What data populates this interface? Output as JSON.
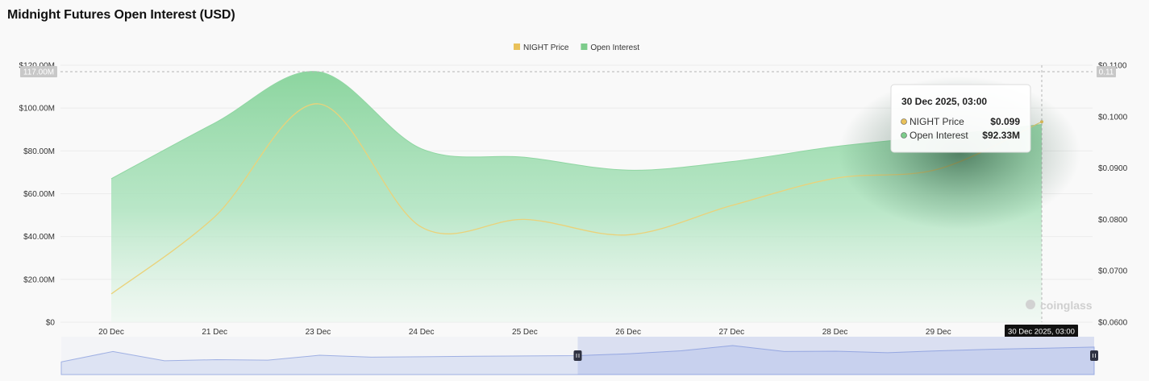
{
  "page": {
    "title": "Midnight Futures Open Interest (USD)"
  },
  "chart_data": {
    "type": "area",
    "legend": {
      "position": "top-center",
      "items": [
        {
          "name": "NIGHT Price",
          "color": "#e9c15a"
        },
        {
          "name": "Open Interest",
          "color": "#7dcc8b"
        }
      ]
    },
    "categories": [
      "20 Dec",
      "21 Dec",
      "23 Dec",
      "24 Dec",
      "25 Dec",
      "26 Dec",
      "27 Dec",
      "28 Dec",
      "29 Dec",
      "30 Dec 2025, 03:00"
    ],
    "x_tick_labels": [
      "20 Dec",
      "21 Dec",
      "23 Dec",
      "24 Dec",
      "25 Dec",
      "26 Dec",
      "27 Dec",
      "28 Dec",
      "29 Dec"
    ],
    "x_current_label": "30 Dec 2025, 03:00",
    "y_left": {
      "ylim": [
        0,
        120000000
      ],
      "tick_labels": [
        "$0",
        "$20.00M",
        "$40.00M",
        "$60.00M",
        "$80.00M",
        "$100.00M",
        "$120.00M"
      ],
      "ticks": [
        0,
        20000000,
        40000000,
        60000000,
        80000000,
        100000000,
        120000000
      ],
      "crosshair_label": "117.00M"
    },
    "y_right": {
      "ylim": [
        0.06,
        0.11
      ],
      "tick_labels": [
        "$0.0600",
        "$0.0700",
        "$0.0800",
        "$0.0900",
        "$0.1000",
        "$0.1100"
      ],
      "ticks": [
        0.06,
        0.07,
        0.08,
        0.09,
        0.1,
        0.11
      ],
      "crosshair_label": "0.11"
    },
    "series": [
      {
        "name": "Open Interest",
        "axis": "left",
        "color": "#7dcc8b",
        "points": [
          {
            "x": 0.0,
            "y": 67000000
          },
          {
            "x": 1.0,
            "y": 93000000
          },
          {
            "x": 2.0,
            "y": 117000000
          },
          {
            "x": 3.0,
            "y": 81000000
          },
          {
            "x": 4.0,
            "y": 77000000
          },
          {
            "x": 5.0,
            "y": 71000000
          },
          {
            "x": 6.0,
            "y": 75000000
          },
          {
            "x": 7.0,
            "y": 82000000
          },
          {
            "x": 8.0,
            "y": 87000000
          },
          {
            "x": 9.0,
            "y": 92330000
          }
        ]
      },
      {
        "name": "NIGHT Price",
        "axis": "right",
        "color": "#e9c15a",
        "points": [
          {
            "x": 0.0,
            "y": 0.0655
          },
          {
            "x": 1.0,
            "y": 0.0805
          },
          {
            "x": 2.0,
            "y": 0.1025
          },
          {
            "x": 3.0,
            "y": 0.0785
          },
          {
            "x": 4.0,
            "y": 0.08
          },
          {
            "x": 5.0,
            "y": 0.077
          },
          {
            "x": 6.0,
            "y": 0.0827
          },
          {
            "x": 7.0,
            "y": 0.088
          },
          {
            "x": 8.0,
            "y": 0.0898
          },
          {
            "x": 9.0,
            "y": 0.099
          }
        ]
      }
    ],
    "tooltip": {
      "title": "30 Dec 2025, 03:00",
      "rows": [
        {
          "label": "NIGHT Price",
          "value": "$0.099",
          "color": "#e9c15a"
        },
        {
          "label": "Open Interest",
          "value": "$92.33M",
          "color": "#7dcc8b"
        }
      ]
    },
    "navigator": {
      "overview": [
        0.2,
        0.9,
        0.28,
        0.35,
        0.32,
        0.65,
        0.52,
        0.55,
        0.58,
        0.6,
        0.62,
        0.75,
        0.95,
        1.3,
        0.9,
        0.92,
        0.82,
        0.95,
        1.05,
        1.12,
        1.2
      ],
      "selection_start": 0.5,
      "selection_end": 1.0
    },
    "watermark": "coinglass",
    "grid": true
  }
}
